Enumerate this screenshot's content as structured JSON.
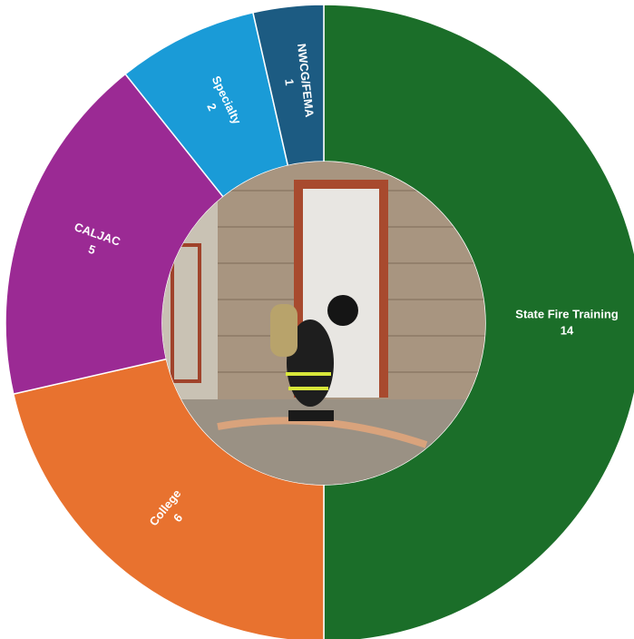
{
  "chart_data": {
    "type": "donut",
    "categories": [
      "State Fire Training",
      "College",
      "CALJAC",
      "Specialty",
      "NWCG/FEMA"
    ],
    "values": [
      14,
      6,
      5,
      2,
      1
    ],
    "colors": [
      "#1b6e29",
      "#e8722f",
      "#9b2a94",
      "#1a9bd7",
      "#1c5b82"
    ]
  }
}
